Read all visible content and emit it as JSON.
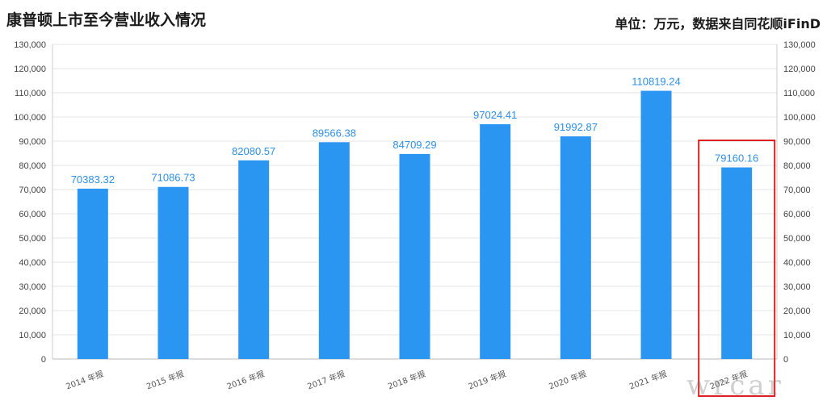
{
  "header": {
    "title": "康普顿上市至今营业收入情况",
    "unit_note": "单位：万元，数据来自同花顺iFinD"
  },
  "watermark": "wrcar",
  "colors": {
    "bar": "#2b95f2",
    "label": "#2e8fe6",
    "grid": "#e6e6e6",
    "highlight_box": "#e02020"
  },
  "chart_data": {
    "type": "bar",
    "title": "康普顿上市至今营业收入情况",
    "categories": [
      "2014 年报",
      "2015 年报",
      "2016 年报",
      "2017 年报",
      "2018 年报",
      "2019 年报",
      "2020 年报",
      "2021 年报",
      "2022 年报"
    ],
    "values": [
      70383.32,
      71086.73,
      82080.57,
      89566.38,
      84709.29,
      97024.41,
      91992.87,
      110819.24,
      79160.16
    ],
    "data_labels": [
      "70383.32",
      "71086.73",
      "82080.57",
      "89566.38",
      "84709.29",
      "97024.41",
      "91992.87",
      "110819.24",
      "79160.16"
    ],
    "ylim": [
      0,
      130000
    ],
    "yticks": [
      "0",
      "10,000",
      "20,000",
      "30,000",
      "40,000",
      "50,000",
      "60,000",
      "70,000",
      "80,000",
      "90,000",
      "100,000",
      "110,000",
      "120,000",
      "130,000"
    ],
    "y_axis_sides": "left and right",
    "grid": true,
    "highlight_category": "2022 年报",
    "xlabel": "",
    "ylabel": ""
  }
}
